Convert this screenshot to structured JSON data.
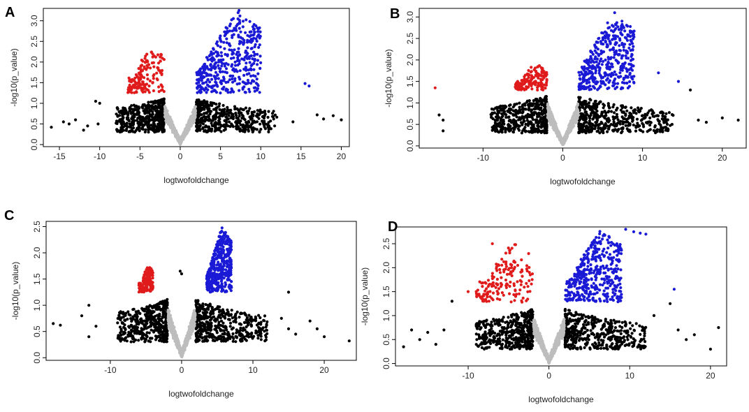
{
  "figure": {
    "colors": {
      "up": "#1a1ad6",
      "down": "#e01b1b",
      "notsig": "#000000",
      "center": "#bdbdbd"
    }
  },
  "chart_data": [
    {
      "type": "scatter",
      "panel": "A",
      "xlabel": "logtwofoldchange",
      "ylabel": "-log10(p_value)",
      "xticks": [
        -15,
        -10,
        -5,
        0,
        5,
        10,
        15,
        20
      ],
      "yticks": [
        0.0,
        0.5,
        1.0,
        1.5,
        2.0,
        2.5,
        3.0
      ],
      "xlim": [
        -17,
        21
      ],
      "ylim": [
        -0.05,
        3.3
      ],
      "threshold": 1.25,
      "fc_cut": 2,
      "down_max_y": 2.4,
      "up_max_y": 3.25,
      "down_x": [
        -6.5,
        -2
      ],
      "up_x": [
        2,
        10
      ],
      "spread_x": [
        -8,
        12
      ],
      "extra_points": [
        {
          "x": -16,
          "y": 0.42,
          "c": "notsig"
        },
        {
          "x": -14.5,
          "y": 0.55,
          "c": "notsig"
        },
        {
          "x": -13.8,
          "y": 0.5,
          "c": "notsig"
        },
        {
          "x": -13,
          "y": 0.6,
          "c": "notsig"
        },
        {
          "x": -12,
          "y": 0.35,
          "c": "notsig"
        },
        {
          "x": -11.5,
          "y": 0.45,
          "c": "notsig"
        },
        {
          "x": -10.5,
          "y": 1.05,
          "c": "notsig"
        },
        {
          "x": -10.2,
          "y": 0.5,
          "c": "notsig"
        },
        {
          "x": -10,
          "y": 1.0,
          "c": "notsig"
        },
        {
          "x": 14,
          "y": 0.55,
          "c": "notsig"
        },
        {
          "x": 17,
          "y": 0.72,
          "c": "notsig"
        },
        {
          "x": 17.8,
          "y": 0.62,
          "c": "notsig"
        },
        {
          "x": 19,
          "y": 0.7,
          "c": "notsig"
        },
        {
          "x": 20,
          "y": 0.6,
          "c": "notsig"
        },
        {
          "x": 15.5,
          "y": 1.48,
          "c": "up"
        },
        {
          "x": 16,
          "y": 1.42,
          "c": "up"
        },
        {
          "x": 7.3,
          "y": 3.25,
          "c": "up"
        },
        {
          "x": 9.7,
          "y": 2.8,
          "c": "up"
        }
      ]
    },
    {
      "type": "scatter",
      "panel": "B",
      "xlabel": "logtwofoldchange",
      "ylabel": "-log10(p_value)",
      "xticks": [
        -10,
        0,
        10,
        20
      ],
      "yticks": [
        0.0,
        0.5,
        1.0,
        1.5,
        2.0,
        2.5,
        3.0
      ],
      "xlim": [
        -18,
        23
      ],
      "ylim": [
        -0.05,
        3.2
      ],
      "threshold": 1.3,
      "fc_cut": 2,
      "down_max_y": 1.9,
      "up_max_y": 3.1,
      "down_x": [
        -6,
        -2
      ],
      "up_x": [
        2,
        9
      ],
      "spread_x": [
        -9,
        14
      ],
      "extra_points": [
        {
          "x": -16,
          "y": 1.35,
          "c": "down"
        },
        {
          "x": -15.5,
          "y": 0.72,
          "c": "notsig"
        },
        {
          "x": -15,
          "y": 0.6,
          "c": "notsig"
        },
        {
          "x": -15,
          "y": 0.35,
          "c": "notsig"
        },
        {
          "x": 14.5,
          "y": 1.5,
          "c": "up"
        },
        {
          "x": 12,
          "y": 1.7,
          "c": "up"
        },
        {
          "x": 16,
          "y": 1.3,
          "c": "notsig"
        },
        {
          "x": 17,
          "y": 0.6,
          "c": "notsig"
        },
        {
          "x": 18,
          "y": 0.55,
          "c": "notsig"
        },
        {
          "x": 20,
          "y": 0.65,
          "c": "notsig"
        },
        {
          "x": 22,
          "y": 0.6,
          "c": "notsig"
        },
        {
          "x": 13,
          "y": 0.4,
          "c": "notsig"
        },
        {
          "x": 6.5,
          "y": 3.1,
          "c": "up"
        }
      ]
    },
    {
      "type": "scatter",
      "panel": "C",
      "xlabel": "logtwofoldchange",
      "ylabel": "-log10(p_value)",
      "xticks": [
        -10,
        0,
        10,
        20
      ],
      "yticks": [
        0.0,
        0.5,
        1.0,
        1.5,
        2.0,
        2.5
      ],
      "xlim": [
        -19,
        24.5
      ],
      "ylim": [
        -0.05,
        2.6
      ],
      "threshold": 1.25,
      "fc_cut": 2,
      "down_max_y": 1.75,
      "up_max_y": 2.5,
      "down_x": [
        -6,
        -4
      ],
      "up_x": [
        3.5,
        7
      ],
      "spread_x": [
        -9,
        12
      ],
      "extra_points": [
        {
          "x": -18,
          "y": 0.65,
          "c": "notsig"
        },
        {
          "x": -17,
          "y": 0.62,
          "c": "notsig"
        },
        {
          "x": -14,
          "y": 0.8,
          "c": "notsig"
        },
        {
          "x": -13,
          "y": 1.0,
          "c": "notsig"
        },
        {
          "x": -12,
          "y": 0.6,
          "c": "notsig"
        },
        {
          "x": -13,
          "y": 0.4,
          "c": "notsig"
        },
        {
          "x": 14,
          "y": 0.75,
          "c": "notsig"
        },
        {
          "x": 15,
          "y": 1.25,
          "c": "notsig"
        },
        {
          "x": 15,
          "y": 0.55,
          "c": "notsig"
        },
        {
          "x": 16,
          "y": 0.45,
          "c": "notsig"
        },
        {
          "x": 18,
          "y": 0.7,
          "c": "notsig"
        },
        {
          "x": 19,
          "y": 0.55,
          "c": "notsig"
        },
        {
          "x": 20,
          "y": 0.4,
          "c": "notsig"
        },
        {
          "x": 23.5,
          "y": 0.32,
          "c": "notsig"
        },
        {
          "x": -0.2,
          "y": 1.65,
          "c": "notsig"
        },
        {
          "x": 0,
          "y": 1.6,
          "c": "notsig"
        }
      ]
    },
    {
      "type": "scatter",
      "panel": "D",
      "xlabel": "logtwofoldchange",
      "ylabel": "-log10(p_value)",
      "xticks": [
        -10,
        0,
        10,
        20
      ],
      "yticks": [
        0.0,
        0.5,
        1.0,
        1.5,
        2.0,
        2.5
      ],
      "xlim": [
        -19,
        22
      ],
      "ylim": [
        -0.05,
        2.85
      ],
      "threshold": 1.28,
      "fc_cut": 2,
      "down_max_y": 2.5,
      "up_max_y": 2.8,
      "down_x": [
        -9,
        -2
      ],
      "up_x": [
        2,
        9
      ],
      "spread_x": [
        -9,
        12
      ],
      "extra_points": [
        {
          "x": 9.5,
          "y": 2.8,
          "c": "up"
        },
        {
          "x": 10.5,
          "y": 2.75,
          "c": "up"
        },
        {
          "x": 11.3,
          "y": 2.72,
          "c": "up"
        },
        {
          "x": 12,
          "y": 2.7,
          "c": "up"
        },
        {
          "x": 15.5,
          "y": 1.55,
          "c": "up"
        },
        {
          "x": -7,
          "y": 2.5,
          "c": "down"
        },
        {
          "x": -10,
          "y": 1.5,
          "c": "down"
        },
        {
          "x": -9,
          "y": 1.5,
          "c": "down"
        },
        {
          "x": -18,
          "y": 0.35,
          "c": "notsig"
        },
        {
          "x": -17,
          "y": 0.7,
          "c": "notsig"
        },
        {
          "x": -16,
          "y": 0.5,
          "c": "notsig"
        },
        {
          "x": -15,
          "y": 0.65,
          "c": "notsig"
        },
        {
          "x": -14,
          "y": 0.4,
          "c": "notsig"
        },
        {
          "x": -13,
          "y": 0.7,
          "c": "notsig"
        },
        {
          "x": -12,
          "y": 1.3,
          "c": "notsig"
        },
        {
          "x": 13,
          "y": 1.0,
          "c": "notsig"
        },
        {
          "x": 15,
          "y": 1.25,
          "c": "notsig"
        },
        {
          "x": 16,
          "y": 0.7,
          "c": "notsig"
        },
        {
          "x": 17,
          "y": 0.5,
          "c": "notsig"
        },
        {
          "x": 18,
          "y": 0.6,
          "c": "notsig"
        },
        {
          "x": 20,
          "y": 0.3,
          "c": "notsig"
        },
        {
          "x": 21,
          "y": 0.75,
          "c": "notsig"
        }
      ]
    }
  ]
}
